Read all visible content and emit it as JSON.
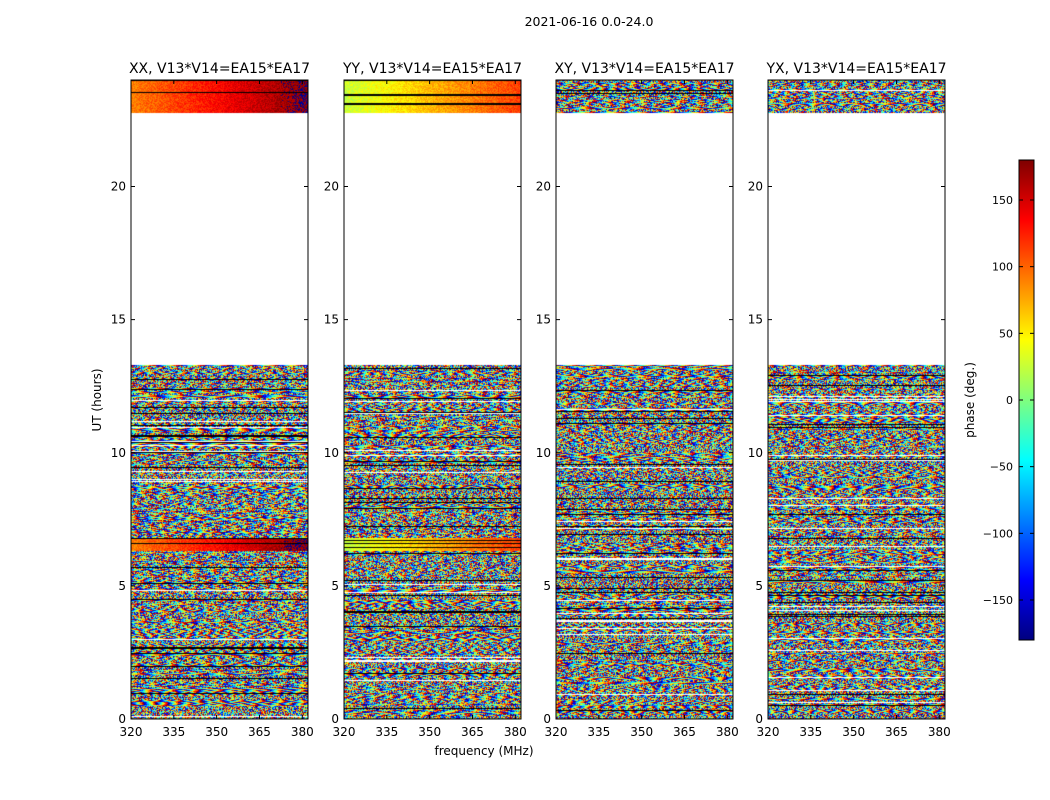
{
  "figure": {
    "suptitle": "2021-06-16 0.0-24.0",
    "xlabel": "frequency (MHz)",
    "ylabel": "UT (hours)"
  },
  "chart_data": {
    "type": "heatmap",
    "title": "2021-06-16 0.0-24.0",
    "xlabel": "frequency (MHz)",
    "ylabel": "UT (hours)",
    "xlim": [
      320,
      382
    ],
    "ylim": [
      0,
      24
    ],
    "x_ticks": [
      "320",
      "335",
      "350",
      "365",
      "380"
    ],
    "x_tick_values": [
      320,
      335,
      350,
      365,
      380
    ],
    "y_ticks": [
      "0",
      "5",
      "10",
      "15",
      "20"
    ],
    "y_tick_values": [
      0,
      5,
      10,
      15,
      20
    ],
    "colorbar": {
      "label": "phase (deg.)",
      "range": [
        -180,
        180
      ],
      "ticks": [
        "150",
        "100",
        "50",
        "0",
        "−50",
        "−100",
        "−150"
      ],
      "tick_values": [
        150,
        100,
        50,
        0,
        -50,
        -100,
        -150
      ],
      "colormap": [
        "#00007f",
        "#0000ff",
        "#007fff",
        "#00ffff",
        "#7fff7f",
        "#ffff00",
        "#ff7f00",
        "#ff0000",
        "#7f0000"
      ]
    },
    "time_blocks_hours": [
      [
        0,
        13.3
      ],
      [
        22.75,
        24
      ]
    ],
    "panels": [
      {
        "title": "XX, V13*V14=EA15*EA17",
        "coherent_phase_deg": 90
      },
      {
        "title": "YY, V13*V14=EA15*EA17",
        "coherent_phase_deg": 25
      },
      {
        "title": "XY, V13*V14=EA15*EA17",
        "coherent_phase_deg": null
      },
      {
        "title": "YX, V13*V14=EA15*EA17",
        "coherent_phase_deg": null
      }
    ]
  }
}
